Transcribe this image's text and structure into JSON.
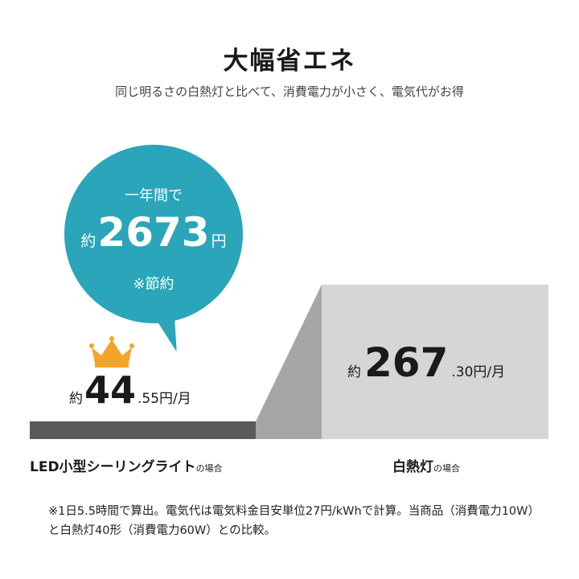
{
  "title": "大幅省エネ",
  "subtitle": "同じ明るさの白熱灯と比べて、消費電力が小さく、電気代がお得",
  "bubble": {
    "line1": "一年間で",
    "prefix": "約",
    "amount": "2673",
    "unit": "円",
    "note": "※節約"
  },
  "led": {
    "prefix": "約",
    "value": "44",
    "suffix": ".55円/月",
    "label": "LED小型シーリングライト",
    "label_suffix": "の場合"
  },
  "incandescent": {
    "prefix": "約",
    "value": "267",
    "suffix": ".30円/月",
    "label": "白熱灯",
    "label_suffix": "の場合"
  },
  "footnote": "※1日5.5時間で算出。電気代は電気料金目安単位27円/kWhで計算。当商品（消費電力10W）と白熱灯40形（消費電力60W）との比較。",
  "colors": {
    "bubble": "#2aa5b9",
    "crown": "#f3a52a",
    "led_bar": "#5a5a5a",
    "inc_front": "#d6d6d6",
    "inc_side": "#a6a6a6"
  }
}
